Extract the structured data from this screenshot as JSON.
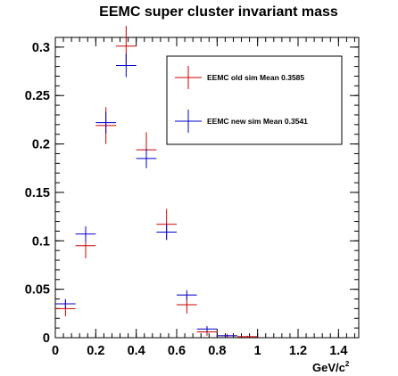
{
  "chart_data": {
    "type": "scatter",
    "title": "EEMC super cluster invariant mass",
    "xlabel": "GeV/c",
    "xlabel_superscript": "2",
    "ylabel": "",
    "xlim": [
      0,
      1.5
    ],
    "ylim": [
      0,
      0.31
    ],
    "x_ticks": [
      0,
      0.2,
      0.4,
      0.6,
      0.8,
      1,
      1.2,
      1.4
    ],
    "x_tick_labels": [
      "0",
      "0.2",
      "0.4",
      "0.6",
      "0.8",
      "1",
      "1.2",
      "1.4"
    ],
    "y_ticks": [
      0,
      0.05,
      0.1,
      0.15,
      0.2,
      0.25,
      0.3
    ],
    "y_tick_labels": [
      "0",
      "0.05",
      "0.1",
      "0.15",
      "0.2",
      "0.25",
      "0.3"
    ],
    "x_bin_halfwidth": 0.05,
    "grid": false,
    "legend_position": "top-right",
    "series": [
      {
        "name": "EEMC old sim Mean 0.3585",
        "color": "#cc0000",
        "points": [
          {
            "x": 0.05,
            "y": 0.03,
            "err": 0.008
          },
          {
            "x": 0.15,
            "y": 0.095,
            "err": 0.013
          },
          {
            "x": 0.25,
            "y": 0.219,
            "err": 0.019
          },
          {
            "x": 0.35,
            "y": 0.301,
            "err": 0.021
          },
          {
            "x": 0.45,
            "y": 0.194,
            "err": 0.018
          },
          {
            "x": 0.55,
            "y": 0.117,
            "err": 0.016
          },
          {
            "x": 0.65,
            "y": 0.034,
            "err": 0.009
          },
          {
            "x": 0.75,
            "y": 0.006,
            "err": 0.004
          },
          {
            "x": 0.85,
            "y": 0.002,
            "err": 0.002
          },
          {
            "x": 0.95,
            "y": 0.001,
            "err": 0.001
          }
        ]
      },
      {
        "name": "EEMC new sim Mean 0.3541",
        "color": "#0000cc",
        "points": [
          {
            "x": 0.05,
            "y": 0.035,
            "err": 0.005
          },
          {
            "x": 0.15,
            "y": 0.107,
            "err": 0.008
          },
          {
            "x": 0.25,
            "y": 0.222,
            "err": 0.011
          },
          {
            "x": 0.35,
            "y": 0.281,
            "err": 0.012
          },
          {
            "x": 0.45,
            "y": 0.185,
            "err": 0.01
          },
          {
            "x": 0.55,
            "y": 0.109,
            "err": 0.008
          },
          {
            "x": 0.65,
            "y": 0.044,
            "err": 0.005
          },
          {
            "x": 0.75,
            "y": 0.009,
            "err": 0.003
          },
          {
            "x": 0.85,
            "y": 0.002,
            "err": 0.001
          }
        ]
      }
    ]
  }
}
